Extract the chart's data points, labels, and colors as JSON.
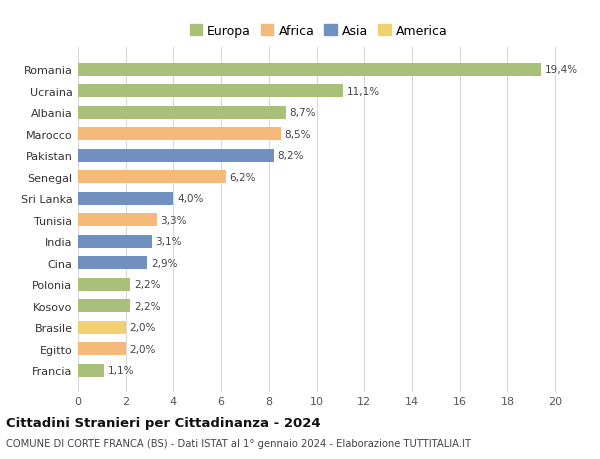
{
  "categories": [
    "Francia",
    "Egitto",
    "Brasile",
    "Kosovo",
    "Polonia",
    "Cina",
    "India",
    "Tunisia",
    "Sri Lanka",
    "Senegal",
    "Pakistan",
    "Marocco",
    "Albania",
    "Ucraina",
    "Romania"
  ],
  "values": [
    1.1,
    2.0,
    2.0,
    2.2,
    2.2,
    2.9,
    3.1,
    3.3,
    4.0,
    6.2,
    8.2,
    8.5,
    8.7,
    11.1,
    19.4
  ],
  "labels": [
    "1,1%",
    "2,0%",
    "2,0%",
    "2,2%",
    "2,2%",
    "2,9%",
    "3,1%",
    "3,3%",
    "4,0%",
    "6,2%",
    "8,2%",
    "8,5%",
    "8,7%",
    "11,1%",
    "19,4%"
  ],
  "colors": [
    "#a8c07a",
    "#f5b97a",
    "#f0d070",
    "#a8c07a",
    "#a8c07a",
    "#7090c0",
    "#7090c0",
    "#f5b97a",
    "#7090c0",
    "#f5b97a",
    "#7090c0",
    "#f5b97a",
    "#a8c07a",
    "#a8c07a",
    "#a8c07a"
  ],
  "legend_labels": [
    "Europa",
    "Africa",
    "Asia",
    "America"
  ],
  "legend_colors": [
    "#a8c07a",
    "#f5b97a",
    "#7090c0",
    "#f0d070"
  ],
  "title": "Cittadini Stranieri per Cittadinanza - 2024",
  "subtitle": "COMUNE DI CORTE FRANCA (BS) - Dati ISTAT al 1° gennaio 2024 - Elaborazione TUTTITALIA.IT",
  "xlim": [
    0,
    21
  ],
  "xticks": [
    0,
    2,
    4,
    6,
    8,
    10,
    12,
    14,
    16,
    18,
    20
  ],
  "background_color": "#ffffff",
  "grid_color": "#d8d8d8"
}
